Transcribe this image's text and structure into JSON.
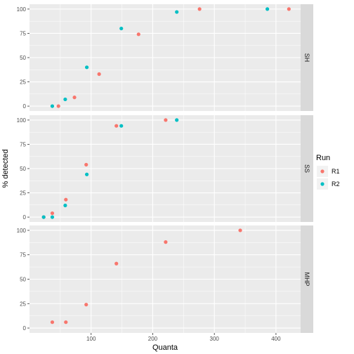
{
  "chart_data": {
    "type": "scatter",
    "xlabel": "Quanta",
    "ylabel": "% detected",
    "xlim": [
      0,
      440
    ],
    "ylim": [
      -5,
      105
    ],
    "x_ticks": [
      100,
      200,
      300,
      400
    ],
    "y_ticks": [
      0,
      25,
      50,
      75,
      100
    ],
    "grid": true,
    "legend": {
      "title": "Run",
      "position": "right",
      "entries": [
        {
          "name": "R1",
          "color": "#F8766D"
        },
        {
          "name": "R2",
          "color": "#00BFC4"
        }
      ]
    },
    "panels": [
      {
        "strip": "SH",
        "series": [
          {
            "name": "R1",
            "points": [
              [
                47,
                0
              ],
              [
                73,
                9
              ],
              [
                113,
                33
              ],
              [
                177,
                74
              ],
              [
                276,
                100
              ],
              [
                421,
                100
              ]
            ]
          },
          {
            "name": "R2",
            "points": [
              [
                37,
                0
              ],
              [
                58,
                7
              ],
              [
                93,
                40
              ],
              [
                149,
                80
              ],
              [
                239,
                97
              ],
              [
                386,
                100
              ]
            ]
          }
        ]
      },
      {
        "strip": "SS",
        "series": [
          {
            "name": "R1",
            "points": [
              [
                23,
                0
              ],
              [
                37,
                4
              ],
              [
                59,
                18
              ],
              [
                92,
                54
              ],
              [
                141,
                94
              ],
              [
                221,
                100
              ]
            ]
          },
          {
            "name": "R2",
            "points": [
              [
                23,
                0
              ],
              [
                37,
                0
              ],
              [
                58,
                12
              ],
              [
                93,
                44
              ],
              [
                149,
                94
              ],
              [
                239,
                100
              ]
            ]
          }
        ]
      },
      {
        "strip": "MHP",
        "series": [
          {
            "name": "R1",
            "points": [
              [
                37,
                6
              ],
              [
                59,
                6
              ],
              [
                92,
                24
              ],
              [
                141,
                66
              ],
              [
                221,
                88
              ],
              [
                342,
                100
              ]
            ]
          }
        ]
      }
    ]
  }
}
